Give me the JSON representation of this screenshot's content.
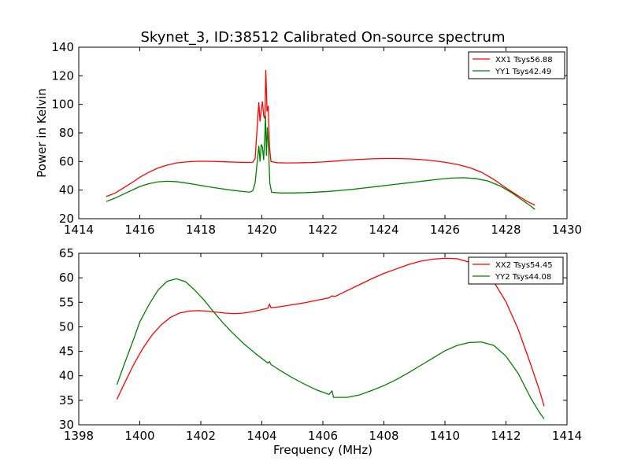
{
  "figure": {
    "title": "Skynet_3, ID:38512 Calibrated On-source spectrum",
    "ylabel": "Power in Kelvin",
    "xlabel": "Frequency (MHz)"
  },
  "chart_data": [
    {
      "type": "line",
      "title": "Skynet_3, ID:38512 Calibrated On-source spectrum",
      "xlabel": "",
      "ylabel": "Power in Kelvin",
      "xlim": [
        1414,
        1430
      ],
      "ylim": [
        20,
        140
      ],
      "xticks": [
        1414,
        1416,
        1418,
        1420,
        1422,
        1424,
        1426,
        1428,
        1430
      ],
      "yticks": [
        20,
        40,
        60,
        80,
        100,
        120,
        140
      ],
      "grid": false,
      "legend_position": "top-right",
      "series": [
        {
          "name": "XX1 Tsys56.88",
          "color": "#ff0000",
          "points": [
            [
              1414.9,
              35.5
            ],
            [
              1415.2,
              38
            ],
            [
              1415.5,
              42
            ],
            [
              1415.8,
              46
            ],
            [
              1416.0,
              49
            ],
            [
              1416.3,
              52.5
            ],
            [
              1416.6,
              55.5
            ],
            [
              1416.9,
              57.5
            ],
            [
              1417.2,
              59
            ],
            [
              1417.5,
              59.7
            ],
            [
              1417.8,
              60.1
            ],
            [
              1418.0,
              60.2
            ],
            [
              1418.4,
              60.1
            ],
            [
              1418.8,
              59.8
            ],
            [
              1419.2,
              59.5
            ],
            [
              1419.5,
              59.4
            ],
            [
              1419.7,
              59.5
            ],
            [
              1419.78,
              62
            ],
            [
              1419.85,
              85
            ],
            [
              1419.9,
              101.5
            ],
            [
              1419.94,
              88
            ],
            [
              1419.98,
              96
            ],
            [
              1420.02,
              102
            ],
            [
              1420.06,
              92
            ],
            [
              1420.1,
              90
            ],
            [
              1420.13,
              124
            ],
            [
              1420.17,
              95
            ],
            [
              1420.21,
              99
            ],
            [
              1420.25,
              70
            ],
            [
              1420.3,
              60
            ],
            [
              1420.5,
              59.2
            ],
            [
              1420.8,
              59
            ],
            [
              1421.2,
              59.1
            ],
            [
              1421.6,
              59.3
            ],
            [
              1422.0,
              59.7
            ],
            [
              1422.4,
              60.3
            ],
            [
              1422.8,
              61
            ],
            [
              1423.2,
              61.5
            ],
            [
              1423.6,
              61.9
            ],
            [
              1424.0,
              62.1
            ],
            [
              1424.4,
              62.1
            ],
            [
              1424.8,
              61.9
            ],
            [
              1425.2,
              61.4
            ],
            [
              1425.6,
              60.6
            ],
            [
              1426.0,
              59.5
            ],
            [
              1426.4,
              58
            ],
            [
              1426.8,
              55.8
            ],
            [
              1427.2,
              52.5
            ],
            [
              1427.6,
              47.5
            ],
            [
              1428.0,
              41.5
            ],
            [
              1428.4,
              36
            ],
            [
              1428.7,
              32
            ],
            [
              1428.95,
              29.5
            ]
          ]
        },
        {
          "name": "YY1 Tsys42.49",
          "color": "#008000",
          "points": [
            [
              1414.9,
              32
            ],
            [
              1415.2,
              34.5
            ],
            [
              1415.5,
              37.5
            ],
            [
              1415.8,
              40.5
            ],
            [
              1416.0,
              42.5
            ],
            [
              1416.3,
              44.5
            ],
            [
              1416.6,
              45.8
            ],
            [
              1416.9,
              46.2
            ],
            [
              1417.2,
              45.9
            ],
            [
              1417.5,
              45
            ],
            [
              1417.8,
              44
            ],
            [
              1418.2,
              42.5
            ],
            [
              1418.6,
              41.2
            ],
            [
              1419.0,
              40
            ],
            [
              1419.4,
              39
            ],
            [
              1419.6,
              38.6
            ],
            [
              1419.7,
              39.5
            ],
            [
              1419.78,
              45
            ],
            [
              1419.85,
              60
            ],
            [
              1419.9,
              71
            ],
            [
              1419.94,
              60
            ],
            [
              1419.98,
              72
            ],
            [
              1420.02,
              70
            ],
            [
              1420.06,
              61
            ],
            [
              1420.1,
              80
            ],
            [
              1420.12,
              92
            ],
            [
              1420.15,
              64
            ],
            [
              1420.18,
              84
            ],
            [
              1420.22,
              70
            ],
            [
              1420.26,
              45
            ],
            [
              1420.32,
              38.5
            ],
            [
              1420.6,
              38
            ],
            [
              1421.0,
              38
            ],
            [
              1421.4,
              38.2
            ],
            [
              1421.8,
              38.6
            ],
            [
              1422.2,
              39.1
            ],
            [
              1422.6,
              39.8
            ],
            [
              1423.0,
              40.6
            ],
            [
              1423.4,
              41.6
            ],
            [
              1423.8,
              42.6
            ],
            [
              1424.2,
              43.6
            ],
            [
              1424.6,
              44.6
            ],
            [
              1425.0,
              45.6
            ],
            [
              1425.4,
              46.6
            ],
            [
              1425.8,
              47.6
            ],
            [
              1426.2,
              48.4
            ],
            [
              1426.6,
              48.7
            ],
            [
              1427.0,
              48.1
            ],
            [
              1427.4,
              46.4
            ],
            [
              1427.8,
              43
            ],
            [
              1428.2,
              38
            ],
            [
              1428.5,
              33.5
            ],
            [
              1428.8,
              29
            ],
            [
              1428.95,
              26.5
            ]
          ]
        }
      ]
    },
    {
      "type": "line",
      "title": "",
      "xlabel": "Frequency (MHz)",
      "ylabel": "",
      "xlim": [
        1398,
        1414
      ],
      "ylim": [
        30,
        65
      ],
      "xticks": [
        1398,
        1400,
        1402,
        1404,
        1406,
        1408,
        1410,
        1412,
        1414
      ],
      "yticks": [
        30,
        35,
        40,
        45,
        50,
        55,
        60,
        65
      ],
      "grid": false,
      "legend_position": "top-right",
      "series": [
        {
          "name": "XX2 Tsys54.45",
          "color": "#ff0000",
          "points": [
            [
              1399.25,
              35.2
            ],
            [
              1399.5,
              38.5
            ],
            [
              1399.8,
              42.3
            ],
            [
              1400.1,
              45.6
            ],
            [
              1400.4,
              48.3
            ],
            [
              1400.7,
              50.4
            ],
            [
              1401.0,
              51.9
            ],
            [
              1401.3,
              52.8
            ],
            [
              1401.6,
              53.2
            ],
            [
              1401.9,
              53.3
            ],
            [
              1402.2,
              53.2
            ],
            [
              1402.5,
              53
            ],
            [
              1402.8,
              52.8
            ],
            [
              1403.1,
              52.7
            ],
            [
              1403.4,
              52.8
            ],
            [
              1403.7,
              53.1
            ],
            [
              1404.0,
              53.5
            ],
            [
              1404.2,
              53.8
            ],
            [
              1404.25,
              54.6
            ],
            [
              1404.3,
              53.9
            ],
            [
              1404.6,
              54.1
            ],
            [
              1405.0,
              54.5
            ],
            [
              1405.4,
              54.9
            ],
            [
              1405.8,
              55.4
            ],
            [
              1406.2,
              55.9
            ],
            [
              1406.3,
              56.3
            ],
            [
              1406.4,
              56.2
            ],
            [
              1406.8,
              57.4
            ],
            [
              1407.2,
              58.6
            ],
            [
              1407.6,
              59.8
            ],
            [
              1408.0,
              60.9
            ],
            [
              1408.4,
              61.8
            ],
            [
              1408.8,
              62.7
            ],
            [
              1409.2,
              63.4
            ],
            [
              1409.6,
              63.8
            ],
            [
              1410.0,
              64
            ],
            [
              1410.4,
              63.9
            ],
            [
              1410.8,
              63.2
            ],
            [
              1411.2,
              61.8
            ],
            [
              1411.6,
              59.2
            ],
            [
              1412.0,
              55.1
            ],
            [
              1412.4,
              49.5
            ],
            [
              1412.8,
              42.5
            ],
            [
              1413.1,
              37
            ],
            [
              1413.25,
              33.8
            ]
          ]
        },
        {
          "name": "YY2 Tsys44.08",
          "color": "#008000",
          "points": [
            [
              1399.25,
              38.2
            ],
            [
              1399.5,
              42.5
            ],
            [
              1399.8,
              47.5
            ],
            [
              1400.0,
              51
            ],
            [
              1400.3,
              54.5
            ],
            [
              1400.6,
              57.5
            ],
            [
              1400.9,
              59.3
            ],
            [
              1401.2,
              59.8
            ],
            [
              1401.5,
              59.2
            ],
            [
              1401.8,
              57.5
            ],
            [
              1402.1,
              55.5
            ],
            [
              1402.4,
              53.2
            ],
            [
              1402.7,
              51
            ],
            [
              1403.0,
              49
            ],
            [
              1403.4,
              46.6
            ],
            [
              1403.8,
              44.5
            ],
            [
              1404.2,
              42.6
            ],
            [
              1404.25,
              42.9
            ],
            [
              1404.3,
              42.3
            ],
            [
              1404.6,
              41.1
            ],
            [
              1405.0,
              39.6
            ],
            [
              1405.4,
              38.3
            ],
            [
              1405.8,
              37.1
            ],
            [
              1406.2,
              36.2
            ],
            [
              1406.3,
              36.9
            ],
            [
              1406.35,
              35.6
            ],
            [
              1406.8,
              35.6
            ],
            [
              1407.2,
              36.1
            ],
            [
              1407.6,
              37
            ],
            [
              1408.0,
              38
            ],
            [
              1408.4,
              39.2
            ],
            [
              1408.8,
              40.6
            ],
            [
              1409.2,
              42.1
            ],
            [
              1409.6,
              43.6
            ],
            [
              1410.0,
              45.1
            ],
            [
              1410.4,
              46.2
            ],
            [
              1410.8,
              46.8
            ],
            [
              1411.2,
              46.9
            ],
            [
              1411.6,
              46.2
            ],
            [
              1412.0,
              44
            ],
            [
              1412.4,
              40.5
            ],
            [
              1412.8,
              35.6
            ],
            [
              1413.1,
              32.5
            ],
            [
              1413.25,
              31.2
            ]
          ]
        }
      ]
    }
  ]
}
